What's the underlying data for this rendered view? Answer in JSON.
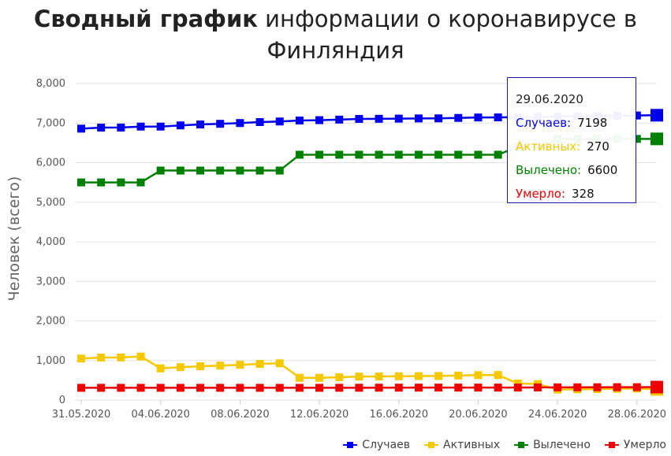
{
  "title_bold": "Сводный график",
  "title_rest": " информации о коронавирусе в Финляндия",
  "chart_data": {
    "type": "line",
    "ylabel": "Человек (всего)",
    "ylim": [
      0,
      8000
    ],
    "yticks": [
      "0",
      "1,000",
      "2,000",
      "3,000",
      "4,000",
      "5,000",
      "6,000",
      "7,000",
      "8,000"
    ],
    "xticks": [
      "31.05.2020",
      "04.06.2020",
      "08.06.2020",
      "12.06.2020",
      "16.06.2020",
      "20.06.2020",
      "24.06.2020",
      "28.06.2020"
    ],
    "x": [
      "31.05.2020",
      "01.06.2020",
      "02.06.2020",
      "03.06.2020",
      "04.06.2020",
      "05.06.2020",
      "06.06.2020",
      "07.06.2020",
      "08.06.2020",
      "09.06.2020",
      "10.06.2020",
      "11.06.2020",
      "12.06.2020",
      "13.06.2020",
      "14.06.2020",
      "15.06.2020",
      "16.06.2020",
      "17.06.2020",
      "18.06.2020",
      "19.06.2020",
      "20.06.2020",
      "21.06.2020",
      "22.06.2020",
      "23.06.2020",
      "24.06.2020",
      "25.06.2020",
      "26.06.2020",
      "27.06.2020",
      "28.06.2020",
      "29.06.2020"
    ],
    "grid": true,
    "legend_position": "bottom-right",
    "series": [
      {
        "name": "Случаев",
        "color": "#0000ee",
        "values": [
          6859,
          6885,
          6887,
          6911,
          6911,
          6941,
          6964,
          6981,
          7001,
          7025,
          7040,
          7064,
          7073,
          7087,
          7104,
          7108,
          7112,
          7117,
          7119,
          7130,
          7141,
          7143,
          7150,
          7155,
          7166,
          7172,
          7179,
          7185,
          7191,
          7198
        ]
      },
      {
        "name": "Активных",
        "color": "#f5c800",
        "values": [
          1049,
          1075,
          1077,
          1101,
          801,
          831,
          854,
          871,
          891,
          915,
          930,
          564,
          563,
          577,
          594,
          598,
          602,
          607,
          609,
          620,
          631,
          633,
          420,
          405,
          266,
          272,
          279,
          285,
          291,
          270
        ]
      },
      {
        "name": "Вылечено",
        "color": "#008000",
        "values": [
          5500,
          5500,
          5500,
          5500,
          5800,
          5800,
          5800,
          5800,
          5800,
          5800,
          5800,
          6200,
          6200,
          6200,
          6200,
          6200,
          6200,
          6200,
          6200,
          6200,
          6200,
          6200,
          6400,
          6400,
          6600,
          6600,
          6600,
          6600,
          6600,
          6600
        ]
      },
      {
        "name": "Умерло",
        "color": "#ee0000",
        "values": [
          310,
          310,
          310,
          310,
          310,
          310,
          310,
          310,
          310,
          310,
          310,
          310,
          310,
          311,
          312,
          313,
          314,
          315,
          316,
          316,
          316,
          316,
          317,
          320,
          322,
          323,
          324,
          326,
          326,
          328
        ]
      }
    ]
  },
  "tooltip": {
    "date": "29.06.2020",
    "rows": [
      {
        "label": "Случаев:",
        "value": "7198",
        "color": "#0000ee"
      },
      {
        "label": "Активных:",
        "value": "270",
        "color": "#f5c800"
      },
      {
        "label": "Вылечено:",
        "value": "6600",
        "color": "#008000"
      },
      {
        "label": "Умерло:",
        "value": "328",
        "color": "#ee0000"
      }
    ]
  }
}
